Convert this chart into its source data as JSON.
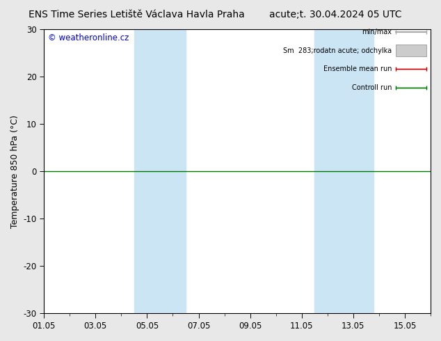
{
  "title_left": "ENS Time Series Letiště Václava Havla Praha",
  "title_right": "acute;t. 30.04.2024 05 UTC",
  "ylabel": "Temperature 850 hPa (°C)",
  "ylim": [
    -30,
    30
  ],
  "yticks": [
    -30,
    -20,
    -10,
    0,
    10,
    20,
    30
  ],
  "xtick_labels": [
    "01.05",
    "03.05",
    "05.05",
    "07.05",
    "09.05",
    "11.05",
    "13.05",
    "15.05"
  ],
  "xtick_positions": [
    0,
    2,
    4,
    6,
    8,
    10,
    12,
    14
  ],
  "blue_bands": [
    {
      "x_start": 3.5,
      "x_end": 5.5
    },
    {
      "x_start": 10.5,
      "x_end": 12.8
    }
  ],
  "band_color": "#cce5f5",
  "zero_line_color": "#007700",
  "copyright_text": "© weatheronline.cz",
  "copyright_color": "#0000dd",
  "bg_color": "#e8e8e8",
  "plot_bg_color": "#ffffff",
  "border_color": "#000000",
  "title_fontsize": 10,
  "tick_fontsize": 8.5,
  "ylabel_fontsize": 9
}
